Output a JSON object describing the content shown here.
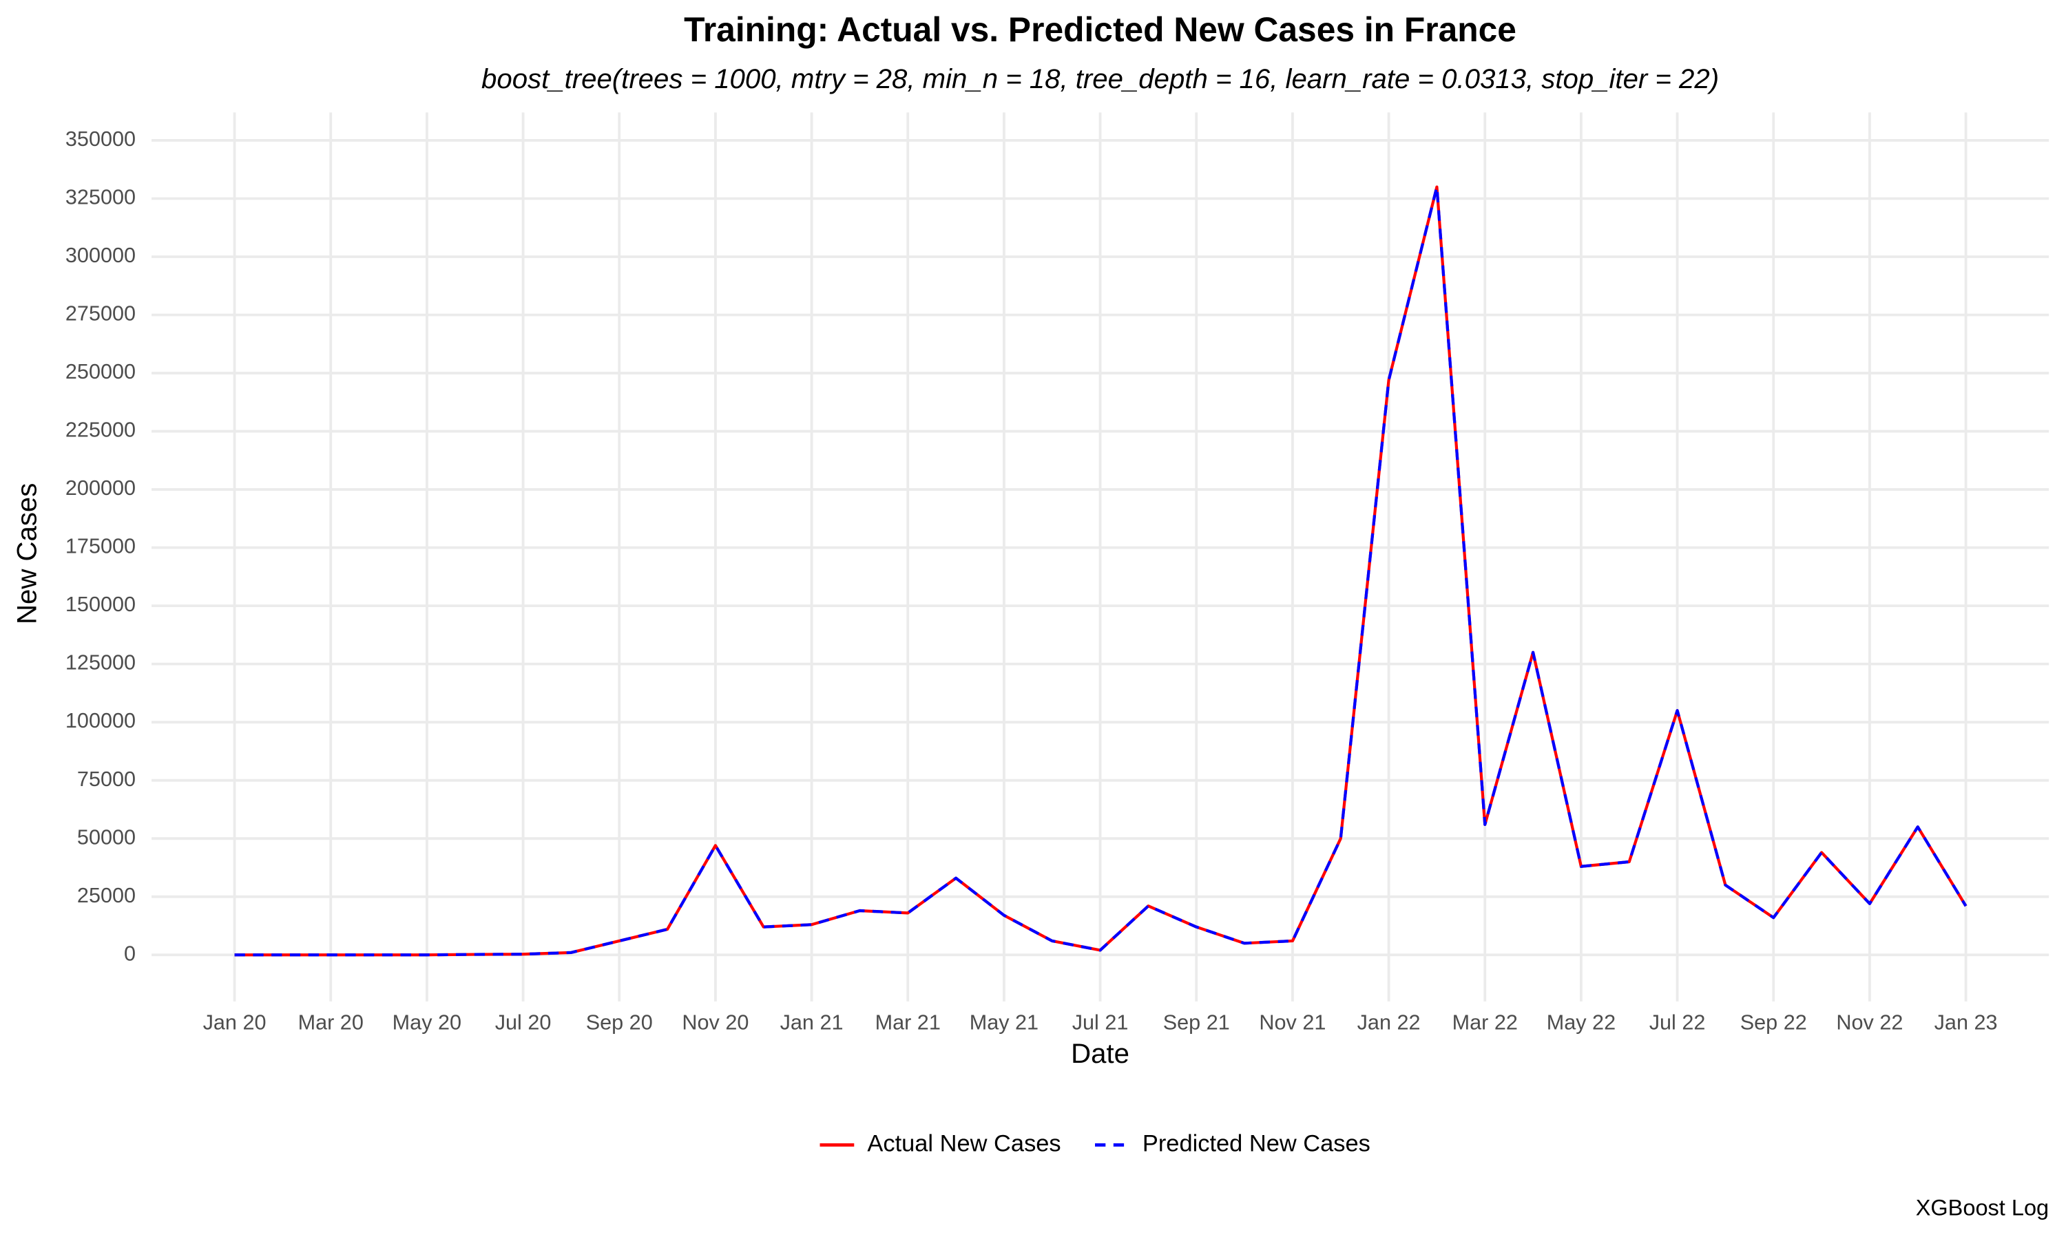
{
  "chart_data": {
    "type": "line",
    "title": "Training: Actual vs. Predicted New Cases in France",
    "subtitle": "boost_tree(trees = 1000, mtry = 28, min_n = 18, tree_depth = 16, learn_rate = 0.0313, stop_iter = 22)",
    "x_label": "Date",
    "y_label": "New Cases",
    "caption": "XGBoost Log",
    "x": [
      "2020-01",
      "2020-02",
      "2020-03",
      "2020-04",
      "2020-05",
      "2020-06",
      "2020-07",
      "2020-08",
      "2020-09",
      "2020-10",
      "2020-11",
      "2020-12",
      "2021-01",
      "2021-02",
      "2021-03",
      "2021-04",
      "2021-05",
      "2021-06",
      "2021-07",
      "2021-08",
      "2021-09",
      "2021-10",
      "2021-11",
      "2021-12",
      "2022-01",
      "2022-02",
      "2022-03",
      "2022-04",
      "2022-05",
      "2022-06",
      "2022-07",
      "2022-08",
      "2022-09",
      "2022-10",
      "2022-11",
      "2022-12",
      "2023-01"
    ],
    "series": [
      {
        "name": "Actual New Cases",
        "color": "#ff0000",
        "dash": false,
        "values": [
          0,
          0,
          0,
          0,
          0,
          200,
          300,
          1000,
          6000,
          11000,
          47000,
          12000,
          13000,
          19000,
          18000,
          33000,
          17000,
          6000,
          2000,
          21000,
          12000,
          5000,
          6000,
          50000,
          247000,
          330000,
          56000,
          130000,
          38000,
          40000,
          105000,
          30000,
          16000,
          44000,
          22000,
          55000,
          21000
        ]
      },
      {
        "name": "Predicted New Cases",
        "color": "#0000ff",
        "dash": true,
        "values": [
          0,
          0,
          0,
          0,
          0,
          200,
          300,
          1000,
          6000,
          11000,
          47000,
          12000,
          13000,
          19000,
          18000,
          33000,
          17000,
          6000,
          2000,
          21000,
          12000,
          5000,
          6000,
          50000,
          247000,
          330000,
          56000,
          130000,
          38000,
          40000,
          105000,
          30000,
          16000,
          44000,
          22000,
          55000,
          21000
        ]
      }
    ],
    "xticks": [
      {
        "value": "2020-01",
        "label": "Jan 20"
      },
      {
        "value": "2020-03",
        "label": "Mar 20"
      },
      {
        "value": "2020-05",
        "label": "May 20"
      },
      {
        "value": "2020-07",
        "label": "Jul 20"
      },
      {
        "value": "2020-09",
        "label": "Sep 20"
      },
      {
        "value": "2020-11",
        "label": "Nov 20"
      },
      {
        "value": "2021-01",
        "label": "Jan 21"
      },
      {
        "value": "2021-03",
        "label": "Mar 21"
      },
      {
        "value": "2021-05",
        "label": "May 21"
      },
      {
        "value": "2021-07",
        "label": "Jul 21"
      },
      {
        "value": "2021-09",
        "label": "Sep 21"
      },
      {
        "value": "2021-11",
        "label": "Nov 21"
      },
      {
        "value": "2022-01",
        "label": "Jan 22"
      },
      {
        "value": "2022-03",
        "label": "Mar 22"
      },
      {
        "value": "2022-05",
        "label": "May 22"
      },
      {
        "value": "2022-07",
        "label": "Jul 22"
      },
      {
        "value": "2022-09",
        "label": "Sep 22"
      },
      {
        "value": "2022-11",
        "label": "Nov 22"
      },
      {
        "value": "2023-01",
        "label": "Jan 23"
      }
    ],
    "ylim": [
      -20000,
      362000
    ],
    "yticks": [
      0,
      25000,
      50000,
      75000,
      100000,
      125000,
      150000,
      175000,
      200000,
      225000,
      250000,
      275000,
      300000,
      325000,
      350000
    ],
    "grid": true,
    "legend": "bottom"
  }
}
